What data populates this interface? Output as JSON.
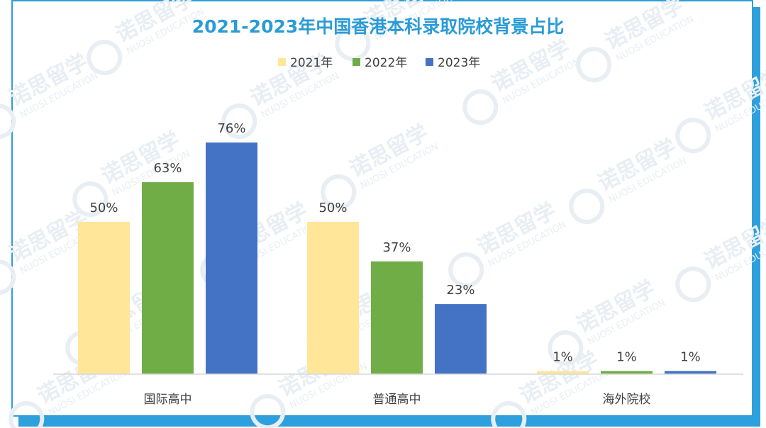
{
  "watermark": {
    "cn": "诺思留学",
    "en": "NUOSI EDUCATION"
  },
  "chart_data": {
    "type": "bar",
    "title": "2021-2023年中国香港本科录取院校背景占比",
    "categories": [
      "国际高中",
      "普通高中",
      "海外院校"
    ],
    "series": [
      {
        "name": "2021年",
        "values": [
          50,
          50,
          1
        ],
        "color": "#ffe699"
      },
      {
        "name": "2022年",
        "values": [
          63,
          37,
          1
        ],
        "color": "#70ad47"
      },
      {
        "name": "2023年",
        "values": [
          76,
          23,
          1
        ],
        "color": "#4472c4"
      }
    ],
    "value_suffix": "%",
    "ylim": [
      0,
      80
    ],
    "legend_position": "top-center",
    "grid": false,
    "xlabel": "",
    "ylabel": ""
  }
}
